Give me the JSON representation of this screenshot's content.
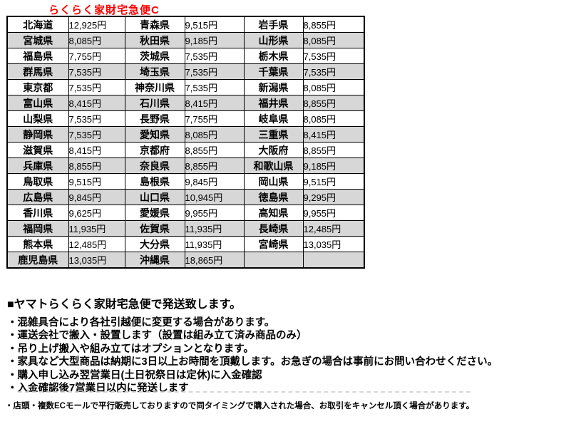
{
  "title": "らくらく家財宅急便C",
  "accent_color": "#ff0000",
  "table": {
    "row_colors": {
      "odd_bg": "#ffffff",
      "even_bg": "#d7d7d7"
    },
    "rows": [
      [
        "北海道",
        "12,925円",
        "青森県",
        "9,515円",
        "岩手県",
        "8,855円"
      ],
      [
        "宮城県",
        "8,085円",
        "秋田県",
        "9,185円",
        "山形県",
        "8,085円"
      ],
      [
        "福島県",
        "7,755円",
        "茨城県",
        "7,535円",
        "栃木県",
        "7,535円"
      ],
      [
        "群馬県",
        "7,535円",
        "埼玉県",
        "7,535円",
        "千葉県",
        "7,535円"
      ],
      [
        "東京都",
        "7,535円",
        "神奈川県",
        "7,535円",
        "新潟県",
        "8,085円"
      ],
      [
        "富山県",
        "8,415円",
        "石川県",
        "8,415円",
        "福井県",
        "8,855円"
      ],
      [
        "山梨県",
        "7,535円",
        "長野県",
        "7,755円",
        "岐阜県",
        "8,085円"
      ],
      [
        "静岡県",
        "7,535円",
        "愛知県",
        "8,085円",
        "三重県",
        "8,415円"
      ],
      [
        "滋賀県",
        "8,415円",
        "京都府",
        "8,855円",
        "大阪府",
        "8,855円"
      ],
      [
        "兵庫県",
        "8,855円",
        "奈良県",
        "8,855円",
        "和歌山県",
        "9,185円"
      ],
      [
        "鳥取県",
        "9,515円",
        "島根県",
        "9,845円",
        "岡山県",
        "9,515円"
      ],
      [
        "広島県",
        "9,845円",
        "山口県",
        "10,945円",
        "徳島県",
        "9,295円"
      ],
      [
        "香川県",
        "9,625円",
        "愛媛県",
        "9,955円",
        "高知県",
        "9,955円"
      ],
      [
        "福岡県",
        "11,935円",
        "佐賀県",
        "11,935円",
        "長崎県",
        "12,485円"
      ],
      [
        "熊本県",
        "12,485円",
        "大分県",
        "11,935円",
        "宮崎県",
        "13,035円"
      ],
      [
        "鹿児島県",
        "13,035円",
        "沖縄県",
        "18,865円",
        "",
        ""
      ]
    ]
  },
  "notes": {
    "heading": "■ヤマトらくらく家財宅急便で発送致します。",
    "bullets": [
      "・混雑具合により各社引越便に変更する場合があります。",
      "・運送会社で搬入・設置します（設置は組み立て済み商品のみ）",
      "・吊り上げ搬入や組み立てはオプションとなります。",
      "・家具など大型商品は納期に3日以上お時間を頂戴します。お急ぎの場合は事前にお問い合わせください。",
      "・購入申し込み翌営業日(土日祝祭日は定休)に入金確認",
      "・入金確認後7営業日以内に発送します"
    ],
    "fine_print": "・店頭・複数ECモールで平行販売しておりますので同タイミングで購入された場合、お取引をキャンセル頂く場合があります。"
  }
}
